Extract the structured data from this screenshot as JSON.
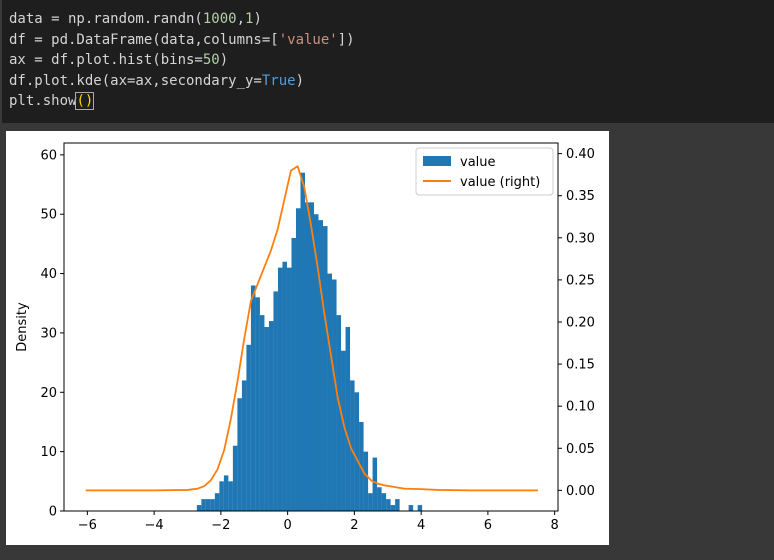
{
  "code_cell": {
    "lines": [
      "data = np.random.randn(1000,1)",
      "df = pd.DataFrame(data,columns=['value'])",
      "ax = df.plot.hist(bins=50)",
      "df.plot.kde(ax=ax,secondary_y=True)",
      "plt.show()"
    ]
  },
  "colors": {
    "hist": "#1f77b4",
    "kde": "#ff7f0e",
    "code_bg": "#1e1e1e",
    "output_bg": "#383838"
  },
  "chart_data": {
    "type": "bar",
    "title": "",
    "ylabel": "Density",
    "xlim": [
      -6.7,
      8.1
    ],
    "ylim_left": [
      0,
      62
    ],
    "ylim_right": [
      -0.0245,
      0.4126
    ],
    "x_ticks": [
      -6,
      -4,
      -2,
      0,
      2,
      4,
      6,
      8
    ],
    "x_tick_labels": [
      "−6",
      "−4",
      "−2",
      "0",
      "2",
      "4",
      "6",
      "8"
    ],
    "y_left_ticks": [
      0,
      10,
      20,
      30,
      40,
      50,
      60
    ],
    "y_left_tick_labels": [
      "0",
      "10",
      "20",
      "30",
      "40",
      "50",
      "60"
    ],
    "y_right_ticks": [
      0.0,
      0.05,
      0.1,
      0.15,
      0.2,
      0.25,
      0.3,
      0.35,
      0.4
    ],
    "y_right_tick_labels": [
      "0.00",
      "0.05",
      "0.10",
      "0.15",
      "0.20",
      "0.25",
      "0.30",
      "0.35",
      "0.40"
    ],
    "legend": {
      "placement": "upper right",
      "entries": [
        "value",
        "value (right)"
      ]
    },
    "histogram": {
      "name": "value",
      "bin_start": -2.72,
      "bin_width": 0.135,
      "counts": [
        1,
        2,
        2,
        2,
        3,
        5,
        6,
        5,
        11,
        19,
        22,
        28,
        38,
        36,
        33,
        31,
        32,
        37,
        41,
        42,
        41,
        46,
        51,
        57,
        52,
        52,
        50,
        49,
        48,
        40,
        39,
        33,
        27,
        31,
        22,
        20,
        15,
        10,
        3,
        9,
        4,
        3,
        2,
        1,
        2,
        0,
        0,
        1,
        0,
        1
      ]
    },
    "kde": {
      "name": "value (right)",
      "x": [
        -6.05,
        -4.0,
        -3.0,
        -2.7,
        -2.5,
        -2.3,
        -2.1,
        -1.9,
        -1.7,
        -1.5,
        -1.3,
        -1.1,
        -0.9,
        -0.7,
        -0.5,
        -0.3,
        -0.1,
        0.1,
        0.3,
        0.5,
        0.7,
        0.9,
        1.1,
        1.3,
        1.5,
        1.7,
        1.9,
        2.1,
        2.3,
        2.5,
        2.7,
        2.9,
        3.2,
        3.5,
        4.0,
        4.5,
        5.5,
        7.5
      ],
      "y": [
        0.0,
        0.0,
        0.0005,
        0.002,
        0.005,
        0.012,
        0.025,
        0.048,
        0.085,
        0.13,
        0.18,
        0.225,
        0.245,
        0.265,
        0.285,
        0.31,
        0.345,
        0.38,
        0.385,
        0.36,
        0.315,
        0.265,
        0.21,
        0.16,
        0.11,
        0.075,
        0.05,
        0.035,
        0.02,
        0.012,
        0.008,
        0.006,
        0.004,
        0.002,
        0.0015,
        0.0005,
        0.0,
        0.0
      ]
    }
  }
}
